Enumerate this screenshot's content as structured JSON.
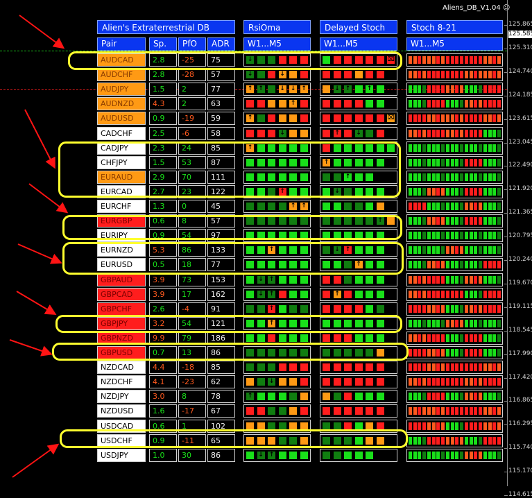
{
  "window": {
    "title": "Aliens_DB_V1.04"
  },
  "colors": {
    "red": "#ff1d1d",
    "orange": "#ff9a14",
    "bright_green": "#19e01a",
    "dark_green": "#107d10",
    "orange_red": "#ff5a1e",
    "yellow_annotation": "#ffff2e",
    "header_blue": "#0a36f0"
  },
  "headers": {
    "main": "Alien's Extraterrestrial DB",
    "rsi": "RsiOma",
    "stoch_delayed": "Delayed Stoch",
    "stoch821": "Stoch 8-21",
    "pair": "Pair",
    "sp": "Sp.",
    "pfo": "PfO",
    "adr": "ADR",
    "tf1": "W1...M5",
    "tf2": "W1...M5",
    "tf3": "W1...M5"
  },
  "price_scale": [
    "125.865",
    "125.310",
    "124.740",
    "124.185",
    "123.615",
    "123.045",
    "122.490",
    "121.920",
    "121.365",
    "120.795",
    "120.240",
    "119.670",
    "119.115",
    "118.545",
    "117.990",
    "117.420",
    "116.865",
    "116.295",
    "115.740",
    "115.170",
    "114.615"
  ],
  "current_price": "125.585",
  "rows": [
    {
      "pair": "AUDCAD",
      "pair_bg": "orange",
      "sp": "2.8",
      "pfo": "-25",
      "adr": "75",
      "rsi": "dddrrr",
      "rsi_i": "a-----",
      "ds": "Grrrrrr",
      "ds_i": "------s",
      "st": "mmrrm"
    },
    {
      "pair": "AUDCHF",
      "pair_bg": "orange",
      "sp": "2.8",
      "pfo": "-28",
      "adr": "57",
      "rsi": "ddroor",
      "rsi_i": "a--v--",
      "ds": "rrrorr",
      "ds_i": "------",
      "st": "mrrmm"
    },
    {
      "pair": "AUDJPY",
      "pair_bg": "orange",
      "sp": "1.5",
      "pfo": "2",
      "adr": "77",
      "rsi": "oddooo",
      "rsi_i": "uu-vvu",
      "ds": "oddggg",
      "ds_i": "-vu-u-",
      "st": "grmgr"
    },
    {
      "pair": "AUDNZD",
      "pair_bg": "orange",
      "sp": "4.3",
      "pfo": "2",
      "adr": "63",
      "rsi": "rrooor",
      "rsi_i": "----u-",
      "ds": "rrrrgg",
      "ds_i": "------",
      "st": "grgmr"
    },
    {
      "pair": "AUDUSD",
      "pair_bg": "orange",
      "sp": "0.9",
      "pfo": "-19",
      "adr": "59",
      "rsi": "odroor",
      "rsi_i": "u-----",
      "ds": "rrrrrro",
      "ds_i": "------s",
      "st": "rmmrm"
    },
    {
      "pair": "CADCHF",
      "pair_bg": "white",
      "sp": "2.5",
      "pfo": "-6",
      "adr": "58",
      "rsi": "rrrdoo",
      "rsi_i": "---v--",
      "ds": "rrrddr",
      "ds_i": "-u-v--",
      "st": "mrmrg"
    },
    {
      "pair": "CADJPY",
      "pair_bg": "white",
      "sp": "2.3",
      "pfo": "24",
      "adr": "85",
      "rsi": "oggggg",
      "rsi_i": "u-----",
      "ds": "rgggggg",
      "ds_i": "-------",
      "st": "ggggg"
    },
    {
      "pair": "CHFJPY",
      "pair_bg": "white",
      "sp": "1.5",
      "pfo": "53",
      "adr": "87",
      "rsi": "gggggg",
      "rsi_i": "------",
      "ds": "oggggg",
      "ds_i": "u-----",
      "st": "gggrg"
    },
    {
      "pair": "EURAUD",
      "pair_bg": "orange",
      "sp": "2.9",
      "pfo": "70",
      "adr": "111",
      "rsi": "gggggg",
      "rsi_i": "------",
      "ds": "ddggg",
      "ds_i": "--u--",
      "st": "ggggg"
    },
    {
      "pair": "EURCAD",
      "pair_bg": "white",
      "sp": "2.7",
      "pfo": "23",
      "adr": "122",
      "rsi": "ggdrgg",
      "rsi_i": "---u--",
      "ds": "gddggg",
      "ds_i": "-v----",
      "st": "gmgrg"
    },
    {
      "pair": "EURCHF",
      "pair_bg": "white",
      "sp": "1.3",
      "pfo": "0",
      "adr": "45",
      "rsi": "ddddoo",
      "rsi_i": "----uu",
      "ds": "ggddgo",
      "ds_i": "------",
      "st": "rggmg"
    },
    {
      "pair": "EURGBP",
      "pair_bg": "red",
      "sp": "0.6",
      "pfo": "8",
      "adr": "57",
      "rsi": "dddddd",
      "rsi_i": "------",
      "ds": "ddddddo",
      "ds_i": "-----u-",
      "st": "gmgrg"
    },
    {
      "pair": "EURJPY",
      "pair_bg": "white",
      "sp": "0.9",
      "pfo": "54",
      "adr": "97",
      "rsi": "gggggg",
      "rsi_i": "------",
      "ds": "gggggg",
      "ds_i": "------",
      "st": "ggggg"
    },
    {
      "pair": "EURNZD",
      "pair_bg": "white",
      "sp": "5.3",
      "pfo": "86",
      "adr": "133",
      "rsi": "ggoggg",
      "rsi_i": "--u---",
      "ds": "ddrggg",
      "ds_i": "-vu---",
      "st": "ggmgg"
    },
    {
      "pair": "EURUSD",
      "pair_bg": "white",
      "sp": "0.5",
      "pfo": "18",
      "adr": "77",
      "rsi": "gggggg",
      "rsi_i": "------",
      "ds": "ggdogg",
      "ds_i": "---u--",
      "st": "gmggr"
    },
    {
      "pair": "GBPAUD",
      "pair_bg": "red",
      "sp": "3.9",
      "pfo": "73",
      "adr": "153",
      "rsi": "gddggg",
      "rsi_i": "-vu---",
      "ds": "rrdggg",
      "ds_i": "------",
      "st": "mrgmg"
    },
    {
      "pair": "GBPCAD",
      "pair_bg": "red",
      "sp": "3.9",
      "pfo": "17",
      "adr": "162",
      "rsi": "gddrgg",
      "rsi_i": "-vu---",
      "ds": "rorggg",
      "ds_i": "-u----",
      "st": "mrrgr"
    },
    {
      "pair": "GBPCHF",
      "pair_bg": "red",
      "sp": "2.6",
      "pfo": "-4",
      "adr": "91",
      "rsi": "ddrgdd",
      "rsi_i": "--u---",
      "ds": "rrrrgd",
      "ds_i": "------",
      "st": "rmgmr"
    },
    {
      "pair": "GBPJPY",
      "pair_bg": "red",
      "sp": "3.2",
      "pfo": "54",
      "adr": "121",
      "rsi": "ggoggg",
      "rsi_i": "--u---",
      "ds": "gggggg",
      "ds_i": "------",
      "st": "ggmgg"
    },
    {
      "pair": "GBPNZD",
      "pair_bg": "red",
      "sp": "9.9",
      "pfo": "79",
      "adr": "186",
      "rsi": "ggrggg",
      "rsi_i": "------",
      "ds": "rrrggg",
      "ds_i": "------",
      "st": "mrgrg"
    },
    {
      "pair": "GBPUSD",
      "pair_bg": "red",
      "sp": "0.7",
      "pa": "",
      "pfo": "13",
      "adr": "86",
      "rsi": "dddddd",
      "rsi_i": "------",
      "ds": "dddddo",
      "ds_i": "------s",
      "st": "rmgrg"
    },
    {
      "pair": "NZDCAD",
      "pair_bg": "white",
      "sp": "4.4",
      "pfo": "-18",
      "adr": "85",
      "rsi": "dddrrr",
      "rsi_i": "------",
      "ds": "rrrrrr",
      "ds_i": "------",
      "st": "rmrrm"
    },
    {
      "pair": "NZDCHF",
      "pair_bg": "white",
      "sp": "4.1",
      "pfo": "-23",
      "adr": "62",
      "rsi": "oddoor",
      "rsi_i": "--v---",
      "ds": "rrrrrr",
      "ds_i": "------",
      "st": "mrrmr"
    },
    {
      "pair": "NZDJPY",
      "pair_bg": "white",
      "sp": "3.0",
      "pfo": "8",
      "adr": "78",
      "rsi": "dgggdo",
      "rsi_i": "u-----",
      "ds": "odrggg",
      "ds_i": "------",
      "st": "grgmg"
    },
    {
      "pair": "NZDUSD",
      "pair_bg": "white",
      "sp": "1.6",
      "pfo": "-17",
      "adr": "67",
      "rsi": "rrddor",
      "rsi_i": "------",
      "ds": "rrrrrr",
      "ds_i": "------",
      "st": "mmrrm"
    },
    {
      "pair": "USDCAD",
      "pair_bg": "white",
      "sp": "0.6",
      "pfo": "1",
      "adr": "102",
      "rsi": "ooddoo",
      "rsi_i": "------",
      "ds": "ddrgor",
      "ds_i": "------",
      "st": "rmgrm"
    },
    {
      "pair": "USDCHF",
      "pair_bg": "white",
      "sp": "0.9",
      "pfo": "-11",
      "adr": "65",
      "rsi": "oooddo",
      "rsi_i": "------",
      "ds": "dddgoo",
      "ds_i": "------",
      "st": "grmgr"
    },
    {
      "pair": "USDJPY",
      "pair_bg": "white",
      "sp": "1.0",
      "pfo": "30",
      "adr": "86",
      "rsi": "gddggg",
      "rsi_i": "-vu---",
      "ds": "ddggg",
      "ds_i": "------",
      "st": "gggmg"
    }
  ]
}
